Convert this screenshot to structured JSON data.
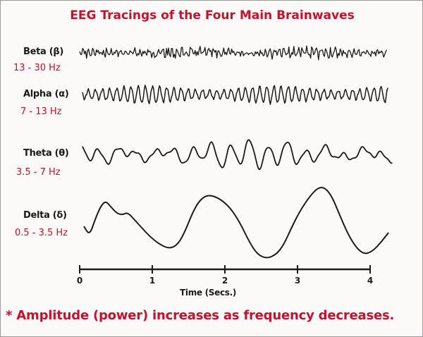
{
  "title": "EEG Tracings of the Four Main Brainwaves",
  "colors": {
    "accent": "#c8102e",
    "ink": "#1a1a1a",
    "background": "#fbfaf8"
  },
  "waves": [
    {
      "name": "Beta (β)",
      "range": "13 - 30 Hz"
    },
    {
      "name": "Alpha (α)",
      "range": "7 - 13 Hz"
    },
    {
      "name": "Theta (θ)",
      "range": "3.5 - 7 Hz"
    },
    {
      "name": "Delta (δ)",
      "range": "0.5 - 3.5 Hz"
    }
  ],
  "axis": {
    "label": "Time (Secs.)",
    "ticks": [
      "0",
      "1",
      "2",
      "3",
      "4"
    ]
  },
  "footnote": "* Amplitude (power) increases as frequency decreases."
}
